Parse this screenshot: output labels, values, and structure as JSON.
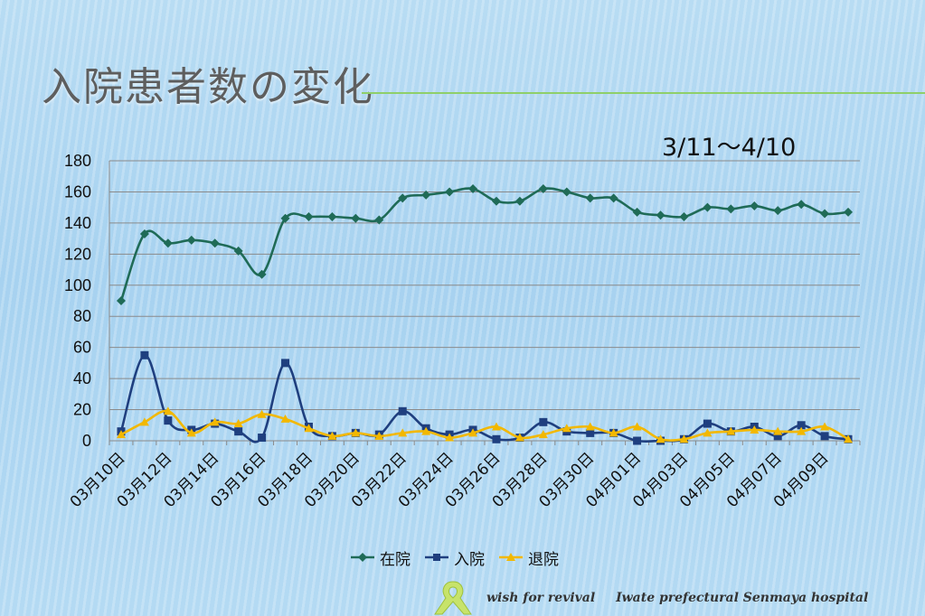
{
  "slide": {
    "title": "入院患者数の変化",
    "subtitle": "3/11～4/10",
    "footer_left": "wish for revival",
    "footer_right": "Iwate prefectural Senmaya hospital"
  },
  "colors": {
    "inpatient": "#1f6b57",
    "admission": "#1f3f7f",
    "discharge": "#f2b800",
    "grid": "#8a8a8a",
    "title_line": "#8fcf6a"
  },
  "icons": [
    "ribbon-logo-icon"
  ],
  "chart_data": {
    "type": "line",
    "title": "",
    "xlabel": "",
    "ylabel": "",
    "ylim": [
      0,
      180
    ],
    "yticks": [
      0,
      20,
      40,
      60,
      80,
      100,
      120,
      140,
      160,
      180
    ],
    "grid": true,
    "legend_position": "bottom",
    "x": [
      "03月10日",
      "03月11日",
      "03月12日",
      "03月13日",
      "03月14日",
      "03月15日",
      "03月16日",
      "03月17日",
      "03月18日",
      "03月19日",
      "03月20日",
      "03月21日",
      "03月22日",
      "03月23日",
      "03月24日",
      "03月25日",
      "03月26日",
      "03月27日",
      "03月28日",
      "03月29日",
      "03月30日",
      "03月31日",
      "04月01日",
      "04月02日",
      "04月03日",
      "04月04日",
      "04月05日",
      "04月06日",
      "04月07日",
      "04月08日",
      "04月09日",
      "04月10日"
    ],
    "x_tick_labels": [
      "03月10日",
      "03月12日",
      "03月14日",
      "03月16日",
      "03月18日",
      "03月20日",
      "03月22日",
      "03月24日",
      "03月26日",
      "03月28日",
      "03月30日",
      "04月01日",
      "04月03日",
      "04月05日",
      "04月07日",
      "04月09日"
    ],
    "series": [
      {
        "name": "在院",
        "color": "#1f6b57",
        "marker": "diamond",
        "values": [
          90,
          133,
          127,
          129,
          127,
          122,
          107,
          143,
          144,
          144,
          143,
          142,
          156,
          158,
          160,
          162,
          154,
          154,
          162,
          160,
          156,
          156,
          147,
          145,
          144,
          150,
          149,
          151,
          148,
          152,
          146,
          147
        ]
      },
      {
        "name": "入院",
        "color": "#1f3f7f",
        "marker": "square",
        "values": [
          6,
          55,
          13,
          7,
          11,
          6,
          2,
          50,
          9,
          3,
          5,
          4,
          19,
          8,
          4,
          7,
          1,
          2,
          12,
          6,
          5,
          5,
          0,
          0,
          1,
          11,
          6,
          9,
          3,
          10,
          3,
          1
        ]
      },
      {
        "name": "退院",
        "color": "#f2b800",
        "marker": "triangle",
        "values": [
          4,
          12,
          19,
          5,
          12,
          11,
          17,
          14,
          8,
          3,
          5,
          3,
          5,
          6,
          2,
          5,
          9,
          2,
          4,
          8,
          9,
          5,
          9,
          1,
          1,
          5,
          6,
          7,
          6,
          6,
          9,
          1
        ]
      }
    ]
  }
}
